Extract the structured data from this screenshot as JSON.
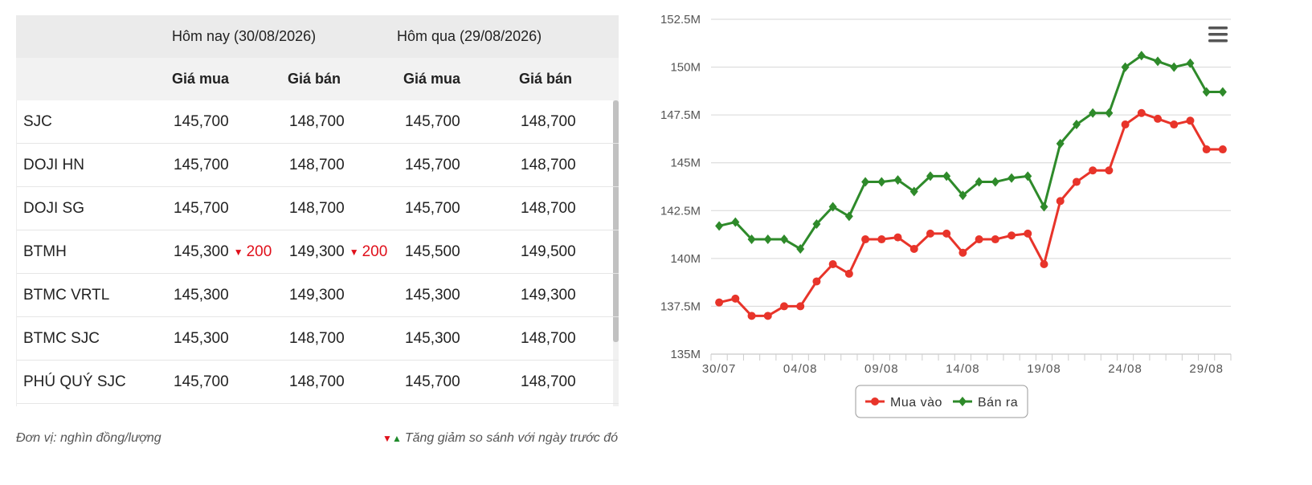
{
  "table": {
    "header_group": [
      "Hôm nay (30/08/2026)",
      "Hôm qua (29/08/2026)"
    ],
    "header_cols": [
      "Giá mua",
      "Giá bán",
      "Giá mua",
      "Giá bán"
    ],
    "rows": [
      {
        "name": "SJC",
        "today_buy": "145,700",
        "today_buy_change": "",
        "today_sell": "148,700",
        "today_sell_change": "",
        "yesterday_buy": "145,700",
        "yesterday_sell": "148,700"
      },
      {
        "name": "DOJI HN",
        "today_buy": "145,700",
        "today_buy_change": "",
        "today_sell": "148,700",
        "today_sell_change": "",
        "yesterday_buy": "145,700",
        "yesterday_sell": "148,700"
      },
      {
        "name": "DOJI SG",
        "today_buy": "145,700",
        "today_buy_change": "",
        "today_sell": "148,700",
        "today_sell_change": "",
        "yesterday_buy": "145,700",
        "yesterday_sell": "148,700"
      },
      {
        "name": "BTMH",
        "today_buy": "145,300",
        "today_buy_change": "200",
        "today_sell": "149,300",
        "today_sell_change": "200",
        "yesterday_buy": "145,500",
        "yesterday_sell": "149,500"
      },
      {
        "name": "BTMC VRTL",
        "today_buy": "145,300",
        "today_buy_change": "",
        "today_sell": "149,300",
        "today_sell_change": "",
        "yesterday_buy": "145,300",
        "yesterday_sell": "149,300"
      },
      {
        "name": "BTMC SJC",
        "today_buy": "145,300",
        "today_buy_change": "",
        "today_sell": "148,700",
        "today_sell_change": "",
        "yesterday_buy": "145,300",
        "yesterday_sell": "148,700"
      },
      {
        "name": "PHÚ QUÝ SJC",
        "today_buy": "145,700",
        "today_buy_change": "",
        "today_sell": "148,700",
        "today_sell_change": "",
        "yesterday_buy": "145,700",
        "yesterday_sell": "148,700"
      }
    ],
    "scrollbar_position": 0.0,
    "scroll_visible_fraction": 0.79
  },
  "footer": {
    "unit_text": "Đơn vị: nghìn đồng/lượng",
    "note_text": "Tăng giảm so sánh với ngày trước đó"
  },
  "colors": {
    "down": "#e0101b",
    "up": "#1e8a2a",
    "buy_series": "#e8342a",
    "sell_series": "#2e8a2a",
    "grid": "#d6d6d6"
  },
  "chart_data": {
    "type": "line",
    "x": [
      "30/07",
      "31/07",
      "01/08",
      "02/08",
      "03/08",
      "04/08",
      "05/08",
      "06/08",
      "07/08",
      "08/08",
      "09/08",
      "10/08",
      "11/08",
      "12/08",
      "13/08",
      "14/08",
      "15/08",
      "16/08",
      "17/08",
      "18/08",
      "19/08",
      "20/08",
      "21/08",
      "22/08",
      "23/08",
      "24/08",
      "25/08",
      "26/08",
      "27/08",
      "28/08",
      "29/08",
      "30/08"
    ],
    "x_tick_labels": [
      "30/07",
      "04/08",
      "09/08",
      "14/08",
      "19/08",
      "24/08",
      "29/08"
    ],
    "y_tick_labels": [
      "135M",
      "137.5M",
      "140M",
      "142.5M",
      "145M",
      "147.5M",
      "150M",
      "152.5M"
    ],
    "ylim": [
      135,
      152.5
    ],
    "y_unit": "M",
    "series": [
      {
        "name": "Mua vào",
        "values": [
          137.7,
          137.9,
          137.0,
          137.0,
          137.5,
          137.5,
          138.8,
          139.7,
          139.2,
          141.0,
          141.0,
          141.1,
          140.5,
          141.3,
          141.3,
          140.3,
          141.0,
          141.0,
          141.2,
          141.3,
          139.7,
          143.0,
          144.0,
          144.6,
          144.6,
          147.0,
          147.6,
          147.3,
          147.0,
          147.2,
          145.7,
          145.7
        ]
      },
      {
        "name": "Bán ra",
        "values": [
          141.7,
          141.9,
          141.0,
          141.0,
          141.0,
          140.5,
          141.8,
          142.7,
          142.2,
          144.0,
          144.0,
          144.1,
          143.5,
          144.3,
          144.3,
          143.3,
          144.0,
          144.0,
          144.2,
          144.3,
          142.7,
          146.0,
          147.0,
          147.6,
          147.6,
          150.0,
          150.6,
          150.3,
          150.0,
          150.2,
          148.7,
          148.7
        ]
      }
    ],
    "grid": true,
    "legend_position": "bottom-center",
    "menu_icon": "hamburger-menu-icon"
  }
}
